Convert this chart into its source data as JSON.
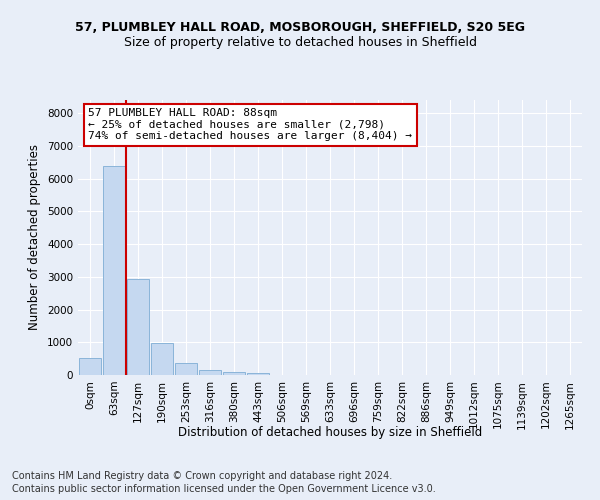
{
  "title_line1": "57, PLUMBLEY HALL ROAD, MOSBOROUGH, SHEFFIELD, S20 5EG",
  "title_line2": "Size of property relative to detached houses in Sheffield",
  "xlabel": "Distribution of detached houses by size in Sheffield",
  "ylabel": "Number of detached properties",
  "footer_line1": "Contains HM Land Registry data © Crown copyright and database right 2024.",
  "footer_line2": "Contains public sector information licensed under the Open Government Licence v3.0.",
  "bar_labels": [
    "0sqm",
    "63sqm",
    "127sqm",
    "190sqm",
    "253sqm",
    "316sqm",
    "380sqm",
    "443sqm",
    "506sqm",
    "569sqm",
    "633sqm",
    "696sqm",
    "759sqm",
    "822sqm",
    "886sqm",
    "949sqm",
    "1012sqm",
    "1075sqm",
    "1139sqm",
    "1202sqm",
    "1265sqm"
  ],
  "bar_values": [
    530,
    6380,
    2920,
    970,
    370,
    160,
    105,
    65,
    0,
    0,
    0,
    0,
    0,
    0,
    0,
    0,
    0,
    0,
    0,
    0,
    0
  ],
  "bar_color": "#c5d8f0",
  "bar_edge_color": "#8ab4d9",
  "annotation_line1": "57 PLUMBLEY HALL ROAD: 88sqm",
  "annotation_line2": "← 25% of detached houses are smaller (2,798)",
  "annotation_line3": "74% of semi-detached houses are larger (8,404) →",
  "annotation_box_color": "#ffffff",
  "annotation_box_edge": "#cc0000",
  "vline_color": "#cc0000",
  "vline_x": 1.5,
  "ylim": [
    0,
    8400
  ],
  "yticks": [
    0,
    1000,
    2000,
    3000,
    4000,
    5000,
    6000,
    7000,
    8000
  ],
  "bg_color": "#e8eef8",
  "plot_bg_color": "#e8eef8",
  "grid_color": "#ffffff",
  "title_fontsize": 9,
  "subtitle_fontsize": 9,
  "axis_label_fontsize": 8.5,
  "tick_fontsize": 7.5,
  "annotation_fontsize": 8,
  "footer_fontsize": 7
}
